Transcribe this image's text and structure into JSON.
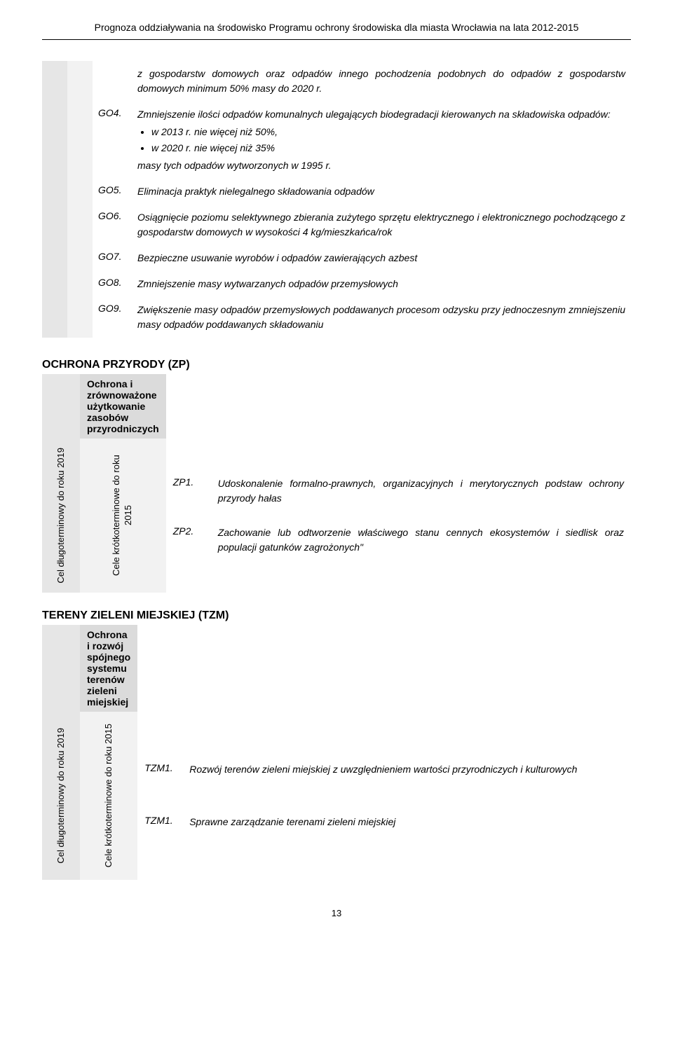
{
  "header": {
    "title": "Prognoza oddziaływania na środowisko Programu ochrony środowiska dla miasta Wrocławia na lata 2012-2015"
  },
  "go_items": [
    {
      "code": "",
      "desc": "z gospodarstw domowych oraz odpadów innego pochodzenia podobnych do odpadów z gospodarstw domowych minimum 50% masy do 2020 r."
    },
    {
      "code": "GO4.",
      "desc_intro": "Zmniejszenie ilości odpadów komunalnych ulegających biodegradacji kierowanych na składowiska odpadów:",
      "bullets": [
        "w 2013 r. nie więcej niż 50%,",
        "w 2020 r. nie więcej niż 35%"
      ],
      "desc_outro": "masy tych odpadów wytworzonych w 1995 r."
    },
    {
      "code": "GO5.",
      "desc": "Eliminacja praktyk nielegalnego składowania odpadów"
    },
    {
      "code": "GO6.",
      "desc": "Osiągnięcie poziomu selektywnego zbierania zużytego sprzętu elektrycznego i elektronicznego pochodzącego z gospodarstw domowych w wysokości 4 kg/mieszkańca/rok"
    },
    {
      "code": "GO7.",
      "desc": "Bezpieczne usuwanie wyrobów i odpadów zawierających azbest"
    },
    {
      "code": "GO8.",
      "desc": "Zmniejszenie masy wytwarzanych odpadów przemysłowych"
    },
    {
      "code": "GO9.",
      "desc": "Zwiększenie masy odpadów przemysłowych poddawanych procesom odzysku przy jednoczesnym zmniejszeniu masy odpadów poddawanych składowaniu"
    }
  ],
  "zp": {
    "section_title": "OCHRONA PRZYRODY (ZP)",
    "header": "Ochrona i zrównoważone użytkowanie zasobów przyrodniczych",
    "long_label": "Cel długoterminowy do roku 2019",
    "short_label": "Cele krótkoterminowe do roku 2015",
    "items": [
      {
        "code": "ZP1.",
        "desc": "Udoskonalenie formalno-prawnych, organizacyjnych i merytorycznych podstaw ochrony przyrody hałas"
      },
      {
        "code": "ZP2.",
        "desc": "Zachowanie lub odtworzenie właściwego stanu cennych ekosystemów i siedlisk oraz populacji gatunków zagrożonych\""
      }
    ]
  },
  "tzm": {
    "section_title": "TERENY ZIELENI MIEJSKIEJ (TZM)",
    "header": "Ochrona i rozwój spójnego systemu terenów zieleni miejskiej",
    "long_label": "Cel długoterminowy do roku 2019",
    "short_label": "Cele krótkoterminowe do roku 2015",
    "items": [
      {
        "code": "TZM1.",
        "desc": "Rozwój terenów zieleni miejskiej z uwzględnieniem wartości przyrodniczych i kulturowych"
      },
      {
        "code": "TZM1.",
        "desc": "Sprawne zarządzanie terenami zieleni miejskiej"
      }
    ]
  },
  "page_number": "13"
}
